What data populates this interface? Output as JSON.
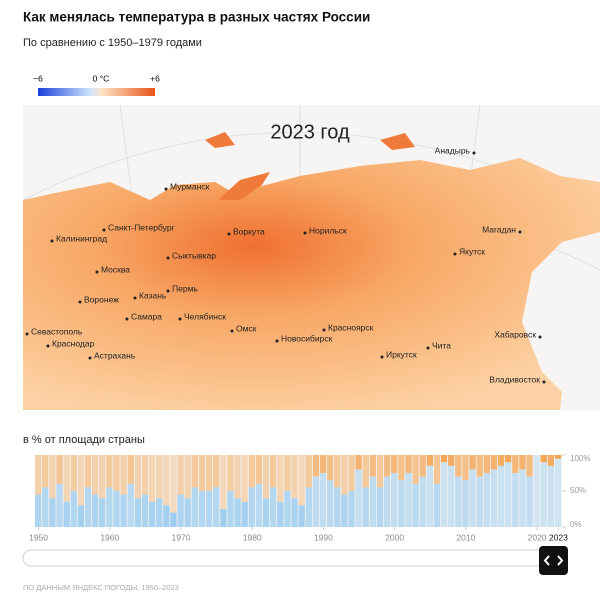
{
  "header": {
    "title": "Как менялась температура в разных частях России",
    "subtitle": "По сравнению с 1950–1979 годами"
  },
  "legend": {
    "min": "−6",
    "mid": "0 °C",
    "max": "+6"
  },
  "map": {
    "year_label": "2023 год",
    "cities": [
      "Мурманск",
      "Санкт-Петербург",
      "Калининград",
      "Москва",
      "Воркута",
      "Норильск",
      "Анадырь",
      "Магадан",
      "Якутск",
      "Сыктывкар",
      "Воронеж",
      "Казань",
      "Пермь",
      "Самара",
      "Челябинск",
      "Омск",
      "Новосибирск",
      "Красноярск",
      "Севастополь",
      "Краснодар",
      "Астрахань",
      "Иркутск",
      "Чита",
      "Хабаровск",
      "Владивосток"
    ]
  },
  "chart_data": {
    "type": "bar",
    "title": "в % от площади страны",
    "x": [
      1950,
      1951,
      1952,
      1953,
      1954,
      1955,
      1956,
      1957,
      1958,
      1959,
      1960,
      1961,
      1962,
      1963,
      1964,
      1965,
      1966,
      1967,
      1968,
      1969,
      1970,
      1971,
      1972,
      1973,
      1974,
      1975,
      1976,
      1977,
      1978,
      1979,
      1980,
      1981,
      1982,
      1983,
      1984,
      1985,
      1986,
      1987,
      1988,
      1989,
      1990,
      1991,
      1992,
      1993,
      1994,
      1995,
      1996,
      1997,
      1998,
      1999,
      2000,
      2001,
      2002,
      2003,
      2004,
      2005,
      2006,
      2007,
      2008,
      2009,
      2010,
      2011,
      2012,
      2013,
      2014,
      2015,
      2016,
      2017,
      2018,
      2019,
      2020,
      2021,
      2022,
      2023
    ],
    "values": [
      45,
      55,
      40,
      60,
      35,
      50,
      30,
      55,
      45,
      40,
      55,
      50,
      45,
      60,
      40,
      45,
      35,
      40,
      30,
      20,
      45,
      40,
      55,
      50,
      50,
      55,
      25,
      50,
      40,
      35,
      55,
      60,
      40,
      55,
      35,
      50,
      40,
      30,
      55,
      70,
      75,
      65,
      55,
      45,
      50,
      80,
      55,
      70,
      55,
      70,
      75,
      65,
      75,
      60,
      70,
      85,
      60,
      90,
      85,
      70,
      65,
      80,
      70,
      75,
      80,
      85,
      90,
      75,
      80,
      70,
      100,
      90,
      85,
      95
    ],
    "xlim": [
      1950,
      2023
    ],
    "xticks": [
      1950,
      1960,
      1970,
      1980,
      1990,
      2000,
      2010,
      2020,
      2023
    ],
    "ylim": [
      0,
      100
    ],
    "yticks": [
      {
        "value": 0,
        "label": "0%"
      },
      {
        "value": 50,
        "label": "50%"
      },
      {
        "value": 100,
        "label": "100%"
      }
    ],
    "warm_color": "#f59a3c",
    "cold_color": "#8ec6ef"
  },
  "footer": {
    "source": "ПО ДАННЫМ ЯНДЕКС ПОГОДЫ, 1950–2023"
  }
}
